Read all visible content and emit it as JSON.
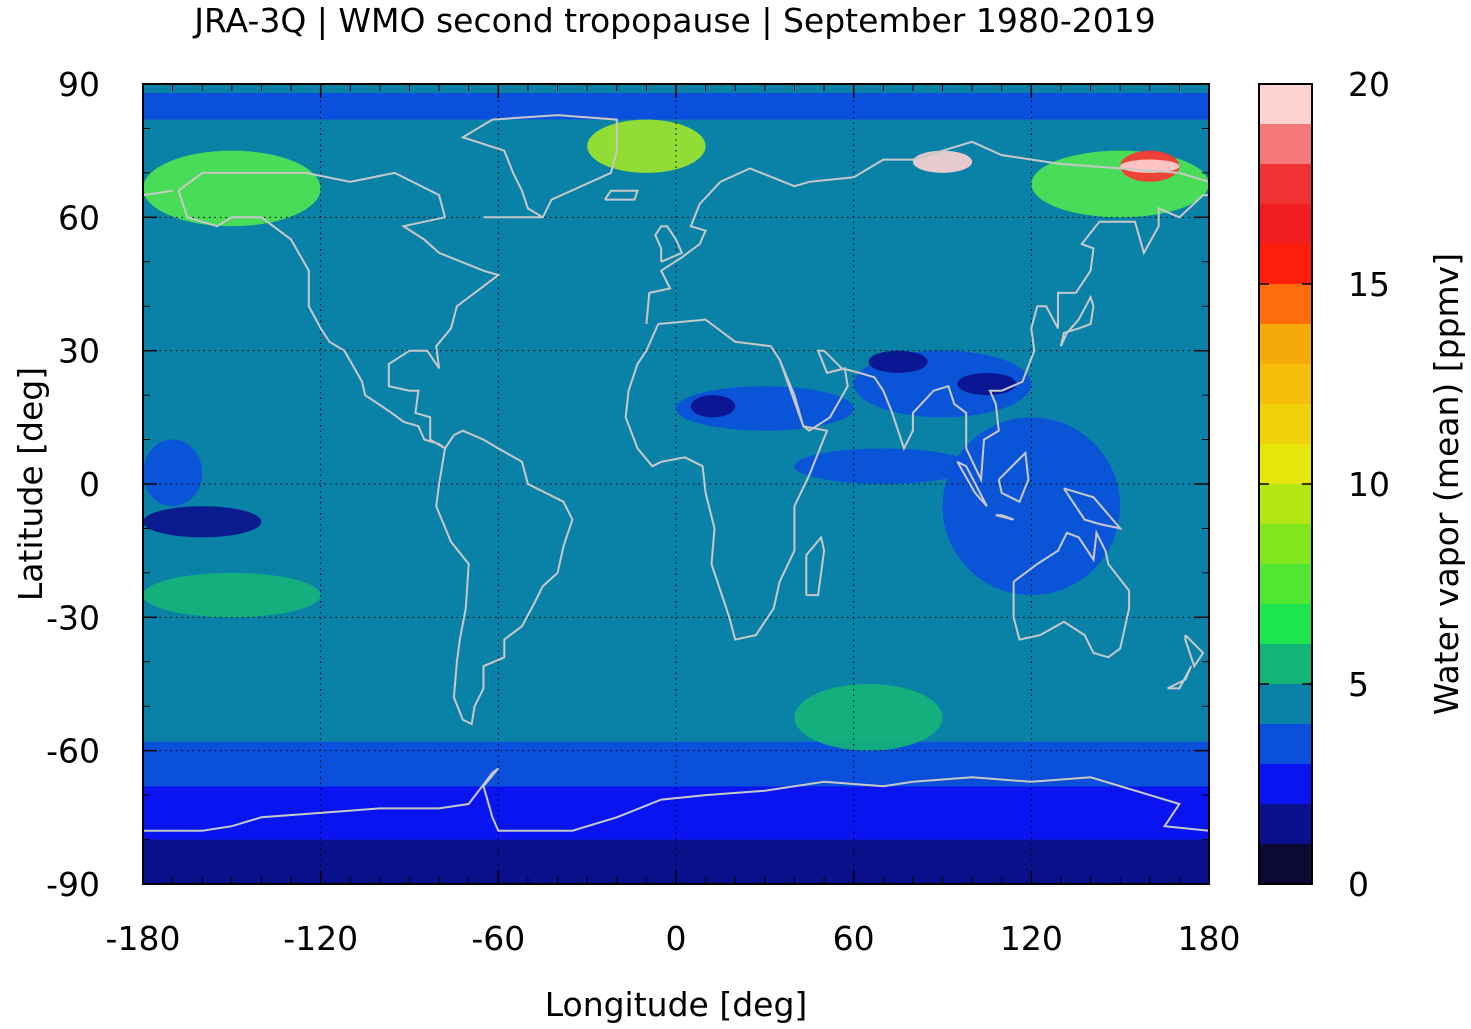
{
  "title": "JRA-3Q | WMO second tropopause | September 1980-2019",
  "map": {
    "xlabel": "Longitude [deg]",
    "ylabel": "Latitude [deg]",
    "x_range": [
      -180,
      180
    ],
    "y_range": [
      -90,
      90
    ],
    "x_ticks": [
      "-180",
      "-120",
      "-60",
      "0",
      "60",
      "120",
      "180"
    ],
    "y_ticks": [
      "90",
      "60",
      "30",
      "0",
      "-30",
      "-60",
      "-90"
    ],
    "x_tick_values": [
      -180,
      -120,
      -60,
      0,
      60,
      120,
      180
    ],
    "y_tick_values": [
      90,
      60,
      30,
      0,
      -30,
      -60,
      -90
    ],
    "grid": true,
    "background_color": "#0a82a8",
    "coastline_color": "#c8c8c8",
    "features": [
      {
        "kind": "band",
        "lat": [
          -90,
          -80
        ],
        "color": "#0a0f8c"
      },
      {
        "kind": "band",
        "lat": [
          -80,
          -68
        ],
        "color": "#0a14f0"
      },
      {
        "kind": "band",
        "lat": [
          -68,
          -58
        ],
        "color": "#0a50dc"
      },
      {
        "kind": "band",
        "lat": [
          82,
          88
        ],
        "color": "#0a50dc"
      },
      {
        "kind": "blob",
        "lon": [
          -180,
          -160
        ],
        "lat": [
          -5,
          10
        ],
        "color": "#0a50dc"
      },
      {
        "kind": "blob",
        "lon": [
          90,
          150
        ],
        "lat": [
          -25,
          15
        ],
        "color": "#0a50dc"
      },
      {
        "kind": "blob",
        "lon": [
          40,
          100
        ],
        "lat": [
          0,
          8
        ],
        "color": "#0a50dc"
      },
      {
        "kind": "blob",
        "lon": [
          0,
          60
        ],
        "lat": [
          12,
          22
        ],
        "color": "#0a50dc"
      },
      {
        "kind": "blob",
        "lon": [
          60,
          120
        ],
        "lat": [
          15,
          30
        ],
        "color": "#0a50dc"
      },
      {
        "kind": "blob",
        "lon": [
          -180,
          -140
        ],
        "lat": [
          -12,
          -5
        ],
        "color": "#0a0f8c"
      },
      {
        "kind": "blob",
        "lon": [
          5,
          20
        ],
        "lat": [
          15,
          20
        ],
        "color": "#0a0f8c"
      },
      {
        "kind": "blob",
        "lon": [
          65,
          85
        ],
        "lat": [
          25,
          30
        ],
        "color": "#0a0f8c"
      },
      {
        "kind": "blob",
        "lon": [
          95,
          115
        ],
        "lat": [
          20,
          25
        ],
        "color": "#0a0f8c"
      },
      {
        "kind": "blob",
        "lon": [
          -180,
          -120
        ],
        "lat": [
          58,
          75
        ],
        "color": "#50e650"
      },
      {
        "kind": "blob",
        "lon": [
          -30,
          10
        ],
        "lat": [
          70,
          82
        ],
        "color": "#a0e628"
      },
      {
        "kind": "blob",
        "lon": [
          120,
          180
        ],
        "lat": [
          60,
          75
        ],
        "color": "#50e650"
      },
      {
        "kind": "blob",
        "lon": [
          150,
          170
        ],
        "lat": [
          68,
          75
        ],
        "color": "#ff3232"
      },
      {
        "kind": "blob",
        "lon": [
          150,
          170
        ],
        "lat": [
          70,
          73
        ],
        "color": "#ffd2d2"
      },
      {
        "kind": "blob",
        "lon": [
          80,
          100
        ],
        "lat": [
          70,
          75
        ],
        "color": "#ffd2d2"
      },
      {
        "kind": "blob",
        "lon": [
          40,
          90
        ],
        "lat": [
          -60,
          -45
        ],
        "color": "#14b478"
      },
      {
        "kind": "blob",
        "lon": [
          -180,
          -120
        ],
        "lat": [
          -30,
          -20
        ],
        "color": "#14b478"
      }
    ]
  },
  "colorbar": {
    "label": "Water vapor (mean) [ppmv]",
    "range": [
      0,
      20
    ],
    "ticks": [
      "20",
      "15",
      "10",
      "5",
      "0"
    ],
    "tick_values": [
      20,
      15,
      10,
      5,
      0
    ],
    "levels": [
      {
        "from": 0,
        "to": 1,
        "color": "#0a0a32"
      },
      {
        "from": 1,
        "to": 2,
        "color": "#0a0f8c"
      },
      {
        "from": 2,
        "to": 3,
        "color": "#0a14f0"
      },
      {
        "from": 3,
        "to": 4,
        "color": "#0a50dc"
      },
      {
        "from": 4,
        "to": 5,
        "color": "#0a82a8"
      },
      {
        "from": 5,
        "to": 6,
        "color": "#14b478"
      },
      {
        "from": 6,
        "to": 7,
        "color": "#1ee650"
      },
      {
        "from": 7,
        "to": 8,
        "color": "#50e632"
      },
      {
        "from": 8,
        "to": 9,
        "color": "#82e61e"
      },
      {
        "from": 9,
        "to": 10,
        "color": "#b4e614"
      },
      {
        "from": 10,
        "to": 11,
        "color": "#e6e60a"
      },
      {
        "from": 11,
        "to": 12,
        "color": "#f0d20a"
      },
      {
        "from": 12,
        "to": 13,
        "color": "#f5be0a"
      },
      {
        "from": 13,
        "to": 14,
        "color": "#f5aa0a"
      },
      {
        "from": 14,
        "to": 15,
        "color": "#ff6e0a"
      },
      {
        "from": 15,
        "to": 16,
        "color": "#ff1e0a"
      },
      {
        "from": 16,
        "to": 17,
        "color": "#f01e1e"
      },
      {
        "from": 17,
        "to": 18,
        "color": "#f03232"
      },
      {
        "from": 18,
        "to": 19,
        "color": "#f57878"
      },
      {
        "from": 19,
        "to": 20,
        "color": "#ffd2d2"
      }
    ]
  }
}
